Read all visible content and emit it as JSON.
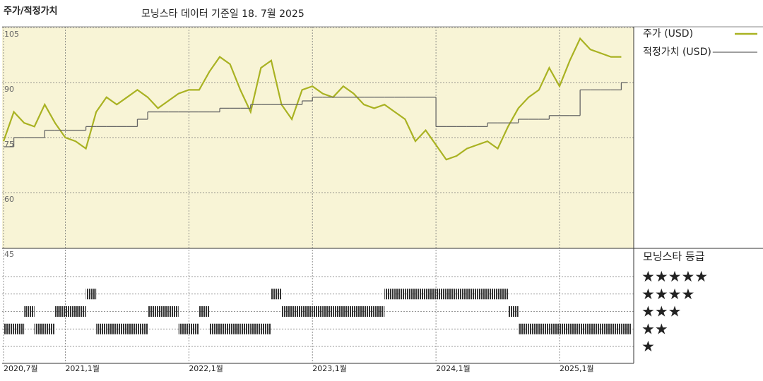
{
  "chart_data": [
    {
      "type": "line",
      "title": "주가/적정가치",
      "subtitle": "모닝스타 데이터 기준일 18. 7월 2025",
      "x": [
        "2020-07",
        "2020-08",
        "2020-09",
        "2020-10",
        "2020-11",
        "2020-12",
        "2021-01",
        "2021-02",
        "2021-03",
        "2021-04",
        "2021-05",
        "2021-06",
        "2021-07",
        "2021-08",
        "2021-09",
        "2021-10",
        "2021-11",
        "2021-12",
        "2022-01",
        "2022-02",
        "2022-03",
        "2022-04",
        "2022-05",
        "2022-06",
        "2022-07",
        "2022-08",
        "2022-09",
        "2022-10",
        "2022-11",
        "2022-12",
        "2023-01",
        "2023-02",
        "2023-03",
        "2023-04",
        "2023-05",
        "2023-06",
        "2023-07",
        "2023-08",
        "2023-09",
        "2023-10",
        "2023-11",
        "2023-12",
        "2024-01",
        "2024-02",
        "2024-03",
        "2024-04",
        "2024-05",
        "2024-06",
        "2024-07",
        "2024-08",
        "2024-09",
        "2024-10",
        "2024-11",
        "2024-12",
        "2025-01",
        "2025-02",
        "2025-03",
        "2025-04",
        "2025-05",
        "2025-06",
        "2025-07"
      ],
      "xlim": [
        "2020-07",
        "2025-08"
      ],
      "series": [
        {
          "name": "주가 (USD)",
          "color": "#a9b222",
          "values": [
            74,
            82,
            79,
            78,
            84,
            79,
            75,
            74,
            72,
            82,
            86,
            84,
            86,
            88,
            86,
            83,
            85,
            87,
            88,
            88,
            93,
            97,
            95,
            88,
            82,
            94,
            96,
            84,
            80,
            88,
            89,
            87,
            86,
            89,
            87,
            84,
            83,
            84,
            82,
            80,
            74,
            77,
            73,
            69,
            70,
            72,
            73,
            74,
            72,
            78,
            83,
            86,
            88,
            94,
            89,
            96,
            102,
            99,
            98,
            97,
            97
          ]
        },
        {
          "name": "적정가치 (USD)",
          "color": "#666666",
          "step": true,
          "values": [
            72.5,
            75,
            75,
            75,
            77,
            77,
            77,
            77,
            78,
            78,
            78,
            78,
            78,
            80,
            82,
            82,
            82,
            82,
            82,
            82,
            82,
            83,
            83,
            83,
            84,
            84,
            84,
            84,
            84,
            85,
            86,
            86,
            86,
            86,
            86,
            86,
            86,
            86,
            86,
            86,
            86,
            86,
            78,
            78,
            78,
            78,
            78,
            79,
            79,
            79,
            80,
            80,
            80,
            81,
            81,
            81,
            88,
            88,
            88,
            88,
            90
          ]
        }
      ],
      "ylim": [
        45,
        105
      ],
      "yticks": [
        45,
        60,
        75,
        90,
        105
      ],
      "grid": true
    },
    {
      "type": "rating-strip",
      "title": "모닝스타 등급",
      "x": [
        "2020-07",
        "2020-08",
        "2020-09",
        "2020-10",
        "2020-11",
        "2020-12",
        "2021-01",
        "2021-02",
        "2021-03",
        "2021-04",
        "2021-05",
        "2021-06",
        "2021-07",
        "2021-08",
        "2021-09",
        "2021-10",
        "2021-11",
        "2021-12",
        "2022-01",
        "2022-02",
        "2022-03",
        "2022-04",
        "2022-05",
        "2022-06",
        "2022-07",
        "2022-08",
        "2022-09",
        "2022-10",
        "2022-11",
        "2022-12",
        "2023-01",
        "2023-02",
        "2023-03",
        "2023-04",
        "2023-05",
        "2023-06",
        "2023-07",
        "2023-08",
        "2023-09",
        "2023-10",
        "2023-11",
        "2023-12",
        "2024-01",
        "2024-02",
        "2024-03",
        "2024-04",
        "2024-05",
        "2024-06",
        "2024-07",
        "2024-08",
        "2024-09",
        "2024-10",
        "2024-11",
        "2024-12",
        "2025-01",
        "2025-02",
        "2025-03",
        "2025-04",
        "2025-05",
        "2025-06",
        "2025-07"
      ],
      "xlim": [
        "2020-07",
        "2025-08"
      ],
      "xticks": [
        {
          "value": "2020-07",
          "label": "2020,7월"
        },
        {
          "value": "2021-01",
          "label": "2021,1월"
        },
        {
          "value": "2022-01",
          "label": "2022,1월"
        },
        {
          "value": "2023-01",
          "label": "2023,1월"
        },
        {
          "value": "2024-01",
          "label": "2024,1월"
        },
        {
          "value": "2025-01",
          "label": "2025,1월"
        }
      ],
      "values": [
        2,
        2,
        3,
        2,
        2,
        3,
        3,
        3,
        4,
        2,
        2,
        2,
        2,
        2,
        3,
        3,
        3,
        2,
        2,
        3,
        2,
        2,
        2,
        2,
        2,
        2,
        4,
        3,
        3,
        3,
        3,
        3,
        3,
        3,
        3,
        3,
        3,
        4,
        4,
        4,
        4,
        4,
        4,
        4,
        4,
        4,
        4,
        4,
        4,
        3,
        2,
        2,
        2,
        2,
        2,
        2,
        2,
        2,
        2,
        2,
        2
      ],
      "color": "#333333",
      "ylim": [
        1,
        5
      ],
      "yticks": [
        {
          "value": 5,
          "label": "★★★★★"
        },
        {
          "value": 4,
          "label": "★★★★"
        },
        {
          "value": 3,
          "label": "★★★"
        },
        {
          "value": 2,
          "label": "★★"
        },
        {
          "value": 1,
          "label": "★"
        }
      ]
    }
  ]
}
